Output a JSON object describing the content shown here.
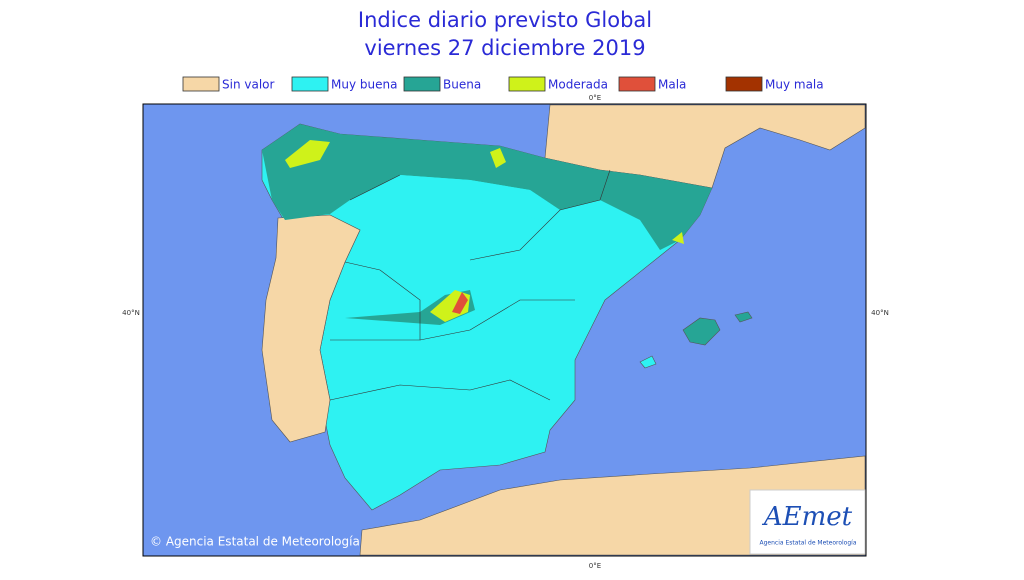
{
  "header": {
    "title_line1": "Indice diario previsto Global",
    "title_line2": "viernes 27 diciembre 2019"
  },
  "legend": {
    "items": [
      {
        "label": "Sin valor",
        "color": "#f6d7a7"
      },
      {
        "label": "Muy buena",
        "color": "#2ef2f2"
      },
      {
        "label": "Buena",
        "color": "#26a595"
      },
      {
        "label": "Moderada",
        "color": "#cff21a"
      },
      {
        "label": "Mala",
        "color": "#e0503a"
      },
      {
        "label": "Muy mala",
        "color": "#a33200"
      }
    ]
  },
  "map": {
    "lon_top": "0°E",
    "lon_bottom": "0°E",
    "lat_left": "40°N",
    "lat_right": "40°N",
    "credit": "© Agencia Estatal de Meteorología"
  },
  "logo": {
    "name": "AEmet",
    "subtitle": "Agencia Estatal de Meteorología"
  }
}
